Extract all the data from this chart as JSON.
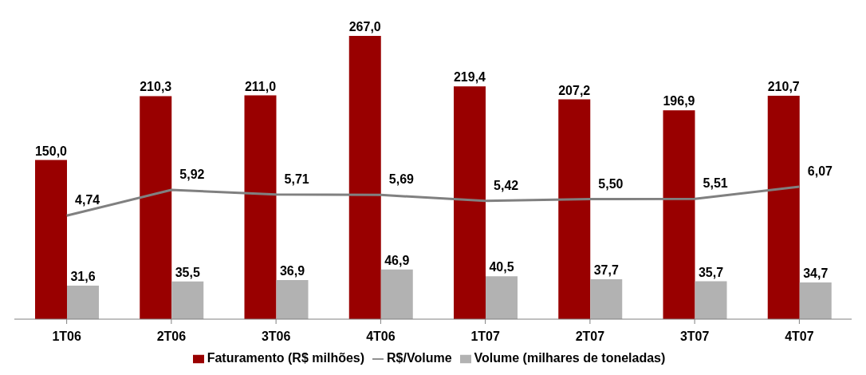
{
  "chart_data": {
    "type": "bar",
    "categories": [
      "1T06",
      "2T06",
      "3T06",
      "4T06",
      "1T07",
      "2T07",
      "3T07",
      "4T07"
    ],
    "series": [
      {
        "name": "Faturamento (R$ milhões)",
        "color": "#990000",
        "values": [
          150.0,
          210.3,
          211.0,
          267.0,
          219.4,
          207.2,
          196.9,
          210.7
        ],
        "value_labels": [
          "150,0",
          "210,3",
          "211,0",
          "267,0",
          "219,4",
          "207,2",
          "196,9",
          "210,7"
        ]
      },
      {
        "name": "Volume (milhares de toneladas)",
        "color": "#b2b2b2",
        "values": [
          31.6,
          35.5,
          36.9,
          46.9,
          40.5,
          37.7,
          35.7,
          34.7
        ],
        "value_labels": [
          "31,6",
          "35,5",
          "36,9",
          "46,9",
          "40,5",
          "37,7",
          "35,7",
          "34,7"
        ]
      },
      {
        "name": "R$/Volume",
        "type": "line",
        "axis": "y2",
        "color": "#808080",
        "values": [
          4.74,
          5.92,
          5.71,
          5.69,
          5.42,
          5.5,
          5.51,
          6.07
        ],
        "value_labels": [
          "4,74",
          "5,92",
          "5,71",
          "5,69",
          "5,42",
          "5,50",
          "5,51",
          "6,07"
        ]
      }
    ],
    "grid": false,
    "legend": "bottom",
    "marker": "none",
    "line_style": "solid"
  }
}
